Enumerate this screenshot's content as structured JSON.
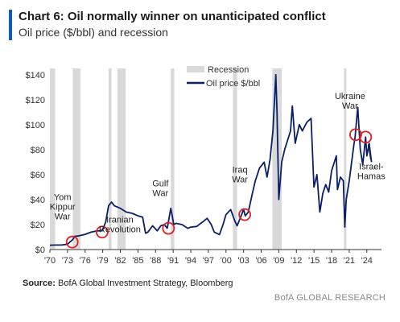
{
  "header": {
    "title": "Chart 6: Oil normally winner on unanticipated conflict",
    "subtitle": "Oil price ($/bbl) and recession"
  },
  "footer": {
    "source_label": "Source:",
    "source_text": " BofA Global Investment Strategy, Bloomberg",
    "brand": "BofA GLOBAL RESEARCH"
  },
  "colors": {
    "line": "#0b1f66",
    "recession": "#d9d9d9",
    "marker": "#e02020",
    "accent": "#0a5bc4"
  },
  "chart_data": {
    "type": "line",
    "title": "Chart 6: Oil normally winner on unanticipated conflict",
    "subtitle": "Oil price ($/bbl) and recession",
    "xlabel": "",
    "ylabel": "",
    "xlim": [
      1970,
      2026.5
    ],
    "ylim": [
      0,
      145
    ],
    "x_ticks": [
      1970,
      1973,
      1976,
      1979,
      1982,
      1985,
      1988,
      1991,
      1994,
      1997,
      2000,
      2003,
      2006,
      2009,
      2012,
      2015,
      2018,
      2021,
      2024
    ],
    "x_tick_labels": [
      "'70",
      "'73",
      "'76",
      "'79",
      "'82",
      "'85",
      "'88",
      "'91",
      "'94",
      "'97",
      "'00",
      "'03",
      "'06",
      "'09",
      "'12",
      "'15",
      "'18",
      "'21",
      "'24"
    ],
    "y_ticks": [
      0,
      20,
      40,
      60,
      80,
      100,
      120,
      140
    ],
    "y_tick_labels": [
      "$0",
      "$20",
      "$40",
      "$60",
      "$80",
      "$100",
      "$120",
      "$140"
    ],
    "legend": {
      "position": "top-center",
      "entries": [
        "Recession",
        "Oil price $/bbl"
      ]
    },
    "recessions": [
      [
        1970.0,
        1970.9
      ],
      [
        1973.9,
        1975.2
      ],
      [
        1980.0,
        1980.5
      ],
      [
        1981.5,
        1982.9
      ],
      [
        1990.6,
        1991.2
      ],
      [
        2001.2,
        2001.9
      ],
      [
        2007.9,
        2009.5
      ],
      [
        2020.1,
        2020.4
      ]
    ],
    "series": [
      {
        "name": "Oil price $/bbl",
        "x": [
          1970.0,
          1971.0,
          1972.0,
          1973.0,
          1973.9,
          1974.2,
          1975.0,
          1976.0,
          1977.0,
          1978.0,
          1978.9,
          1979.5,
          1980.0,
          1980.5,
          1981.0,
          1981.5,
          1982.0,
          1983.0,
          1984.0,
          1985.0,
          1985.8,
          1986.3,
          1986.7,
          1987.5,
          1988.3,
          1988.9,
          1989.5,
          1990.0,
          1990.6,
          1990.8,
          1991.1,
          1991.5,
          1992.5,
          1993.5,
          1994.0,
          1995.0,
          1996.0,
          1996.8,
          1997.5,
          1998.0,
          1998.9,
          1999.5,
          2000.0,
          2000.8,
          2001.5,
          2001.9,
          2002.5,
          2003.0,
          2003.3,
          2003.8,
          2004.5,
          2005.0,
          2005.7,
          2006.5,
          2007.0,
          2007.5,
          2008.0,
          2008.5,
          2008.7,
          2009.0,
          2009.5,
          2010.0,
          2011.0,
          2011.3,
          2011.8,
          2012.5,
          2013.0,
          2013.8,
          2014.5,
          2015.0,
          2015.5,
          2016.0,
          2016.5,
          2017.0,
          2017.5,
          2018.0,
          2018.8,
          2019.0,
          2019.5,
          2020.0,
          2020.25,
          2020.5,
          2021.0,
          2021.8,
          2022.0,
          2022.45,
          2022.9,
          2023.3,
          2023.8,
          2024.0,
          2024.4,
          2024.8
        ],
        "values": [
          3.5,
          3.6,
          3.6,
          4.3,
          8,
          10.5,
          11,
          12.2,
          13.9,
          14.9,
          15,
          22,
          35,
          38,
          35,
          34,
          33,
          30,
          29,
          27,
          26,
          13,
          14,
          19,
          15,
          19,
          20,
          17,
          33,
          28,
          20,
          21,
          20,
          17,
          18,
          18.5,
          22,
          25,
          20,
          14,
          12,
          20,
          28,
          32,
          23,
          19,
          26,
          32,
          27,
          30,
          45,
          55,
          65,
          70,
          58,
          72,
          95,
          140,
          110,
          40,
          70,
          80,
          95,
          115,
          85,
          100,
          95,
          102,
          105,
          50,
          60,
          30,
          45,
          52,
          46,
          63,
          75,
          48,
          58,
          55,
          18,
          40,
          55,
          84,
          90,
          114,
          80,
          68,
          90,
          75,
          85,
          70
        ]
      }
    ],
    "annotations": [
      {
        "label": "Yom Kippur War",
        "lines": [
          "Yom",
          "Kippur",
          "War"
        ],
        "x": 1973.8,
        "y": 6
      },
      {
        "label": "Iranian Revolution",
        "lines": [
          "Iranian",
          "Revolution"
        ],
        "x": 1978.9,
        "y": 14
      },
      {
        "label": "Gulf War",
        "lines": [
          "Gulf",
          "War"
        ],
        "x": 1990.2,
        "y": 17
      },
      {
        "label": "Iraq War",
        "lines": [
          "Iraq",
          "War"
        ],
        "x": 2003.2,
        "y": 28
      },
      {
        "label": "Ukraine War",
        "lines": [
          "Ukraine",
          "War"
        ],
        "x": 2022.1,
        "y": 92
      },
      {
        "label": "Israel-Hamas",
        "lines": [
          "Israel-",
          "Hamas"
        ],
        "x": 2023.8,
        "y": 90
      }
    ]
  }
}
